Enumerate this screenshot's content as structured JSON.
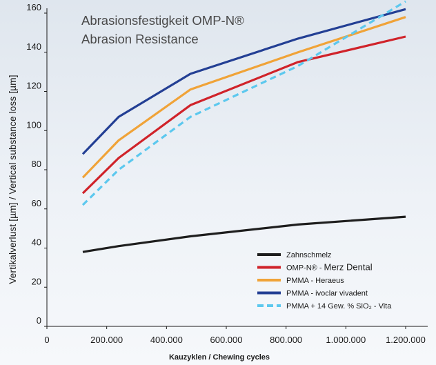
{
  "chart_data": {
    "type": "line",
    "title": "Abrasionsfestigkeit OMP-N®",
    "subtitle": "Abrasion Resistance",
    "xlabel": "Kauzyklen / Chewing cycles",
    "ylabel": "Vertikalverlust [µm] / Vertical substance loss [µm]",
    "xlim": [
      0,
      1200000
    ],
    "ylim": [
      0,
      160
    ],
    "xticks": [
      0,
      200000,
      400000,
      600000,
      800000,
      1000000,
      1200000
    ],
    "xtick_labels": [
      "0",
      "200.000",
      "400.000",
      "600.000",
      "800.000",
      "1.000.000",
      "1.200.000"
    ],
    "yticks": [
      0,
      20,
      40,
      60,
      80,
      100,
      120,
      140,
      160
    ],
    "ytick_labels": [
      "0",
      "20",
      "40",
      "60",
      "80",
      "100",
      "120",
      "140",
      "160"
    ],
    "legend_position": "bottom-right",
    "series": [
      {
        "name": "Zahnschmelz",
        "color": "#1e1e1e",
        "dashed": false,
        "x": [
          120000,
          240000,
          480000,
          840000,
          1200000
        ],
        "y": [
          38,
          41,
          46,
          52,
          56
        ]
      },
      {
        "name": "OMP-N® - Merz Dental",
        "name_parts": [
          "OMP-N® - ",
          "Merz Dental"
        ],
        "color": "#d0232a",
        "dashed": false,
        "x": [
          120000,
          240000,
          480000,
          840000,
          1200000
        ],
        "y": [
          68,
          86,
          113,
          135,
          148
        ]
      },
      {
        "name": "PMMA - Heraeus",
        "color": "#f0a338",
        "dashed": false,
        "x": [
          120000,
          240000,
          480000,
          840000,
          1200000
        ],
        "y": [
          76,
          95,
          121,
          140,
          158
        ]
      },
      {
        "name": "PMMA - ivoclar vivadent",
        "color": "#233f94",
        "dashed": false,
        "x": [
          120000,
          240000,
          480000,
          840000,
          1200000
        ],
        "y": [
          88,
          107,
          129,
          147,
          162
        ]
      },
      {
        "name": "PMMA + 14 Gew. % SiO₂ - Vita",
        "color": "#5cc8ee",
        "dashed": true,
        "x": [
          120000,
          240000,
          480000,
          840000,
          1200000
        ],
        "y": [
          62,
          80,
          107,
          133,
          166
        ]
      }
    ]
  }
}
